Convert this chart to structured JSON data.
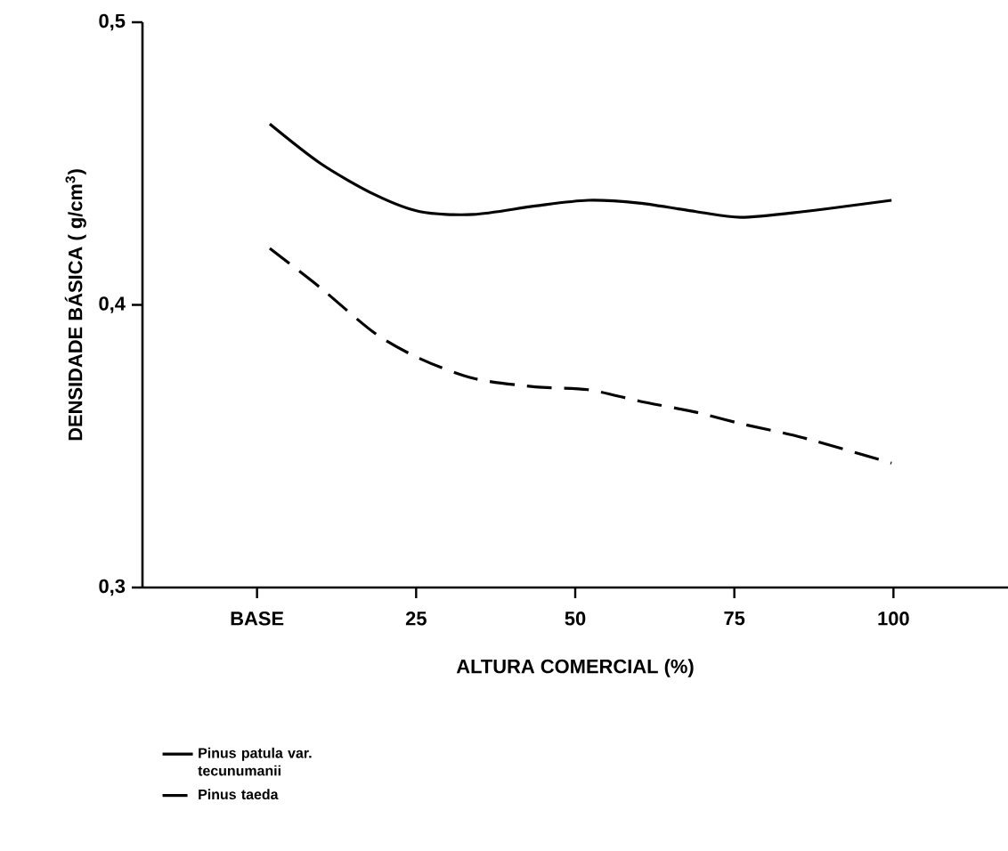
{
  "chart_data": {
    "type": "line",
    "xlabel": "ALTURA COMERCIAL (%)",
    "ylabel": "DENSIDADE BÁSICA ( g/cm$^{3}$)",
    "xlim": [
      -18,
      118
    ],
    "ylim": [
      0.3,
      0.5
    ],
    "xticks": [
      {
        "value": 0,
        "label": "BASE"
      },
      25,
      50,
      75,
      100
    ],
    "yticks": [
      {
        "value": 0.3,
        "label": "0,3"
      },
      {
        "value": 0.4,
        "label": "0,4"
      },
      {
        "value": 0.5,
        "label": "0,5"
      }
    ],
    "grid": false,
    "legend": "bottom left",
    "series": [
      {
        "name": "Pinus patula var. tecunumanii",
        "color": "#000000",
        "line_style": "solid",
        "x": [
          2,
          10,
          18.5,
          25.6,
          34,
          43.7,
          52,
          60,
          69,
          76,
          85.8,
          99.7
        ],
        "values": [
          0.464,
          0.45,
          0.439,
          0.433,
          0.432,
          0.435,
          0.437,
          0.436,
          0.433,
          0.431,
          0.433,
          0.437
        ]
      },
      {
        "name": "Pinus taeda",
        "color": "#000000",
        "line_style": "dashed",
        "x": [
          2,
          10,
          18.5,
          25.6,
          34,
          43.7,
          52,
          60,
          69,
          76,
          85.8,
          99.7
        ],
        "values": [
          0.42,
          0.406,
          0.39,
          0.381,
          0.374,
          0.371,
          0.37,
          0.366,
          0.362,
          0.358,
          0.353,
          0.344
        ]
      }
    ]
  }
}
